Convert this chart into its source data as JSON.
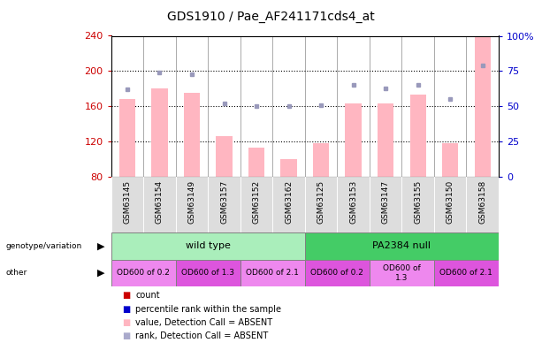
{
  "title": "GDS1910 / Pae_AF241171cds4_at",
  "samples": [
    "GSM63145",
    "GSM63154",
    "GSM63149",
    "GSM63157",
    "GSM63152",
    "GSM63162",
    "GSM63125",
    "GSM63153",
    "GSM63147",
    "GSM63155",
    "GSM63150",
    "GSM63158"
  ],
  "bar_values": [
    168,
    180,
    175,
    126,
    113,
    100,
    118,
    163,
    163,
    173,
    118,
    240
  ],
  "dot_pct": [
    62,
    74,
    73,
    52,
    50,
    50,
    51,
    65,
    63,
    65,
    55,
    79
  ],
  "ylim_left": [
    80,
    240
  ],
  "ylim_right": [
    0,
    100
  ],
  "yticks_left": [
    80,
    120,
    160,
    200,
    240
  ],
  "yticks_right": [
    0,
    25,
    50,
    75,
    100
  ],
  "ytick_labels_right": [
    "0",
    "25",
    "50",
    "75",
    "100%"
  ],
  "bar_color": "#FFB6C1",
  "dot_color": "#9999BB",
  "bar_color_legend": "#FF8888",
  "dot_color_legend": "#4444AA",
  "left_axis_color": "#CC0000",
  "right_axis_color": "#0000CC",
  "genotype_groups": [
    {
      "label": "wild type",
      "start": 0,
      "end": 6,
      "color": "#AAEEBB"
    },
    {
      "label": "PA2384 null",
      "start": 6,
      "end": 12,
      "color": "#44CC66"
    }
  ],
  "other_groups": [
    {
      "label": "OD600 of 0.2",
      "start": 0,
      "end": 2,
      "color": "#EE88EE"
    },
    {
      "label": "OD600 of 1.3",
      "start": 2,
      "end": 4,
      "color": "#DD55DD"
    },
    {
      "label": "OD600 of 2.1",
      "start": 4,
      "end": 6,
      "color": "#EE88EE"
    },
    {
      "label": "OD600 of 0.2",
      "start": 6,
      "end": 8,
      "color": "#DD55DD"
    },
    {
      "label": "OD600 of\n1.3",
      "start": 8,
      "end": 10,
      "color": "#EE88EE"
    },
    {
      "label": "OD600 of 2.1",
      "start": 10,
      "end": 12,
      "color": "#DD55DD"
    }
  ],
  "legend_colors": [
    "#CC0000",
    "#0000CC",
    "#FFB6C1",
    "#AAAACC"
  ],
  "legend_labels": [
    "count",
    "percentile rank within the sample",
    "value, Detection Call = ABSENT",
    "rank, Detection Call = ABSENT"
  ],
  "background_color": "#FFFFFF",
  "sample_bg_color": "#DDDDDD",
  "col_separator_color": "#888888"
}
